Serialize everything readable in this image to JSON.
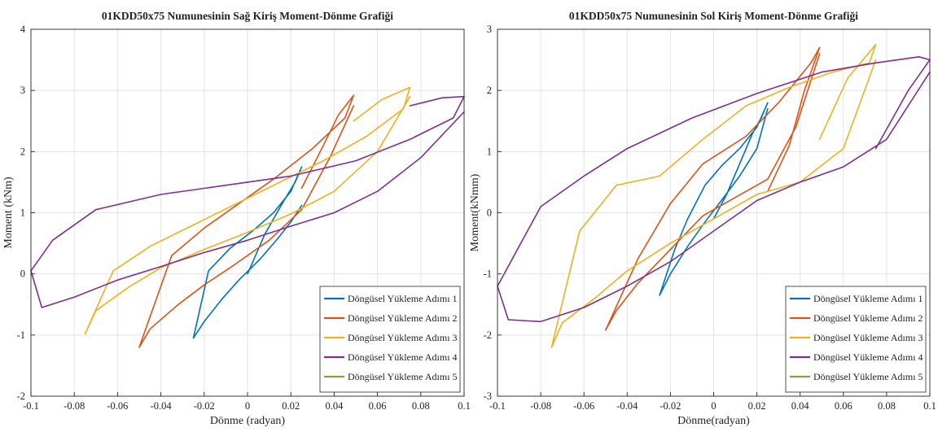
{
  "chart_data": [
    {
      "type": "line",
      "title": "01KDD50x75 Numunesinin Sağ Kiriş Moment-Dönme Grafiği",
      "xlabel": "Dönme (radyan)",
      "ylabel": "Moment (kNm)",
      "xlim": [
        -0.1,
        0.1
      ],
      "ylim": [
        -2,
        4
      ],
      "xticks": [
        -0.1,
        -0.08,
        -0.06,
        -0.04,
        -0.02,
        0,
        0.02,
        0.04,
        0.06,
        0.08,
        0.1
      ],
      "yticks": [
        -2,
        -1,
        0,
        1,
        2,
        3,
        4
      ],
      "grid": true,
      "legend_position": "bottom-right",
      "series": [
        {
          "name": "Döngüsel Yükleme Adımı 1",
          "color": "#0072BD",
          "x": [
            0,
            0.008,
            0.016,
            0.022,
            0.025,
            0.02,
            0.012,
            0.003,
            -0.008,
            -0.018,
            -0.025,
            -0.02,
            -0.012,
            -0.004,
            0.006,
            0.014,
            0.02,
            0.025
          ],
          "y": [
            0,
            0.65,
            1.15,
            1.5,
            1.75,
            1.35,
            1.0,
            0.72,
            0.42,
            0.05,
            -1.05,
            -0.78,
            -0.42,
            -0.1,
            0.25,
            0.58,
            0.85,
            1.12
          ]
        },
        {
          "name": "Döngüsel Yükleme Adımı 2",
          "color": "#D95319",
          "x": [
            0.025,
            0.035,
            0.042,
            0.049,
            0.045,
            0.03,
            0.012,
            -0.004,
            -0.02,
            -0.035,
            -0.05,
            -0.045,
            -0.032,
            -0.02,
            -0.006,
            0.01,
            0.025,
            0.038,
            0.049
          ],
          "y": [
            1.4,
            2.1,
            2.6,
            2.92,
            2.55,
            2.05,
            1.55,
            1.15,
            0.75,
            0.3,
            -1.2,
            -0.9,
            -0.5,
            -0.18,
            0.15,
            0.55,
            1.05,
            1.9,
            2.75
          ]
        },
        {
          "name": "Döngüsel Yükleme Adımı 3",
          "color": "#EDB120",
          "x": [
            0.049,
            0.062,
            0.075,
            0.072,
            0.055,
            0.035,
            0.015,
            -0.005,
            -0.025,
            -0.045,
            -0.062,
            -0.075,
            -0.07,
            -0.055,
            -0.04,
            -0.02,
            0,
            0.02,
            0.04,
            0.06,
            0.075
          ],
          "y": [
            2.5,
            2.85,
            3.05,
            2.7,
            2.25,
            1.85,
            1.5,
            1.15,
            0.8,
            0.45,
            0.05,
            -0.98,
            -0.6,
            -0.22,
            0.1,
            0.4,
            0.68,
            0.98,
            1.35,
            2.0,
            2.9
          ]
        },
        {
          "name": "Döngüsel Yükleme Adımı 4",
          "color": "#7E2F8E",
          "x": [
            0.075,
            0.09,
            0.1,
            0.095,
            0.075,
            0.05,
            0.02,
            -0.01,
            -0.04,
            -0.07,
            -0.09,
            -0.1,
            -0.095,
            -0.08,
            -0.06,
            -0.04,
            -0.02,
            0,
            0.02,
            0.04,
            0.06,
            0.08,
            0.1
          ],
          "y": [
            2.75,
            2.88,
            2.9,
            2.55,
            2.2,
            1.85,
            1.6,
            1.45,
            1.3,
            1.05,
            0.55,
            0.05,
            -0.55,
            -0.38,
            -0.1,
            0.12,
            0.35,
            0.55,
            0.78,
            1.0,
            1.35,
            1.9,
            2.65
          ]
        },
        {
          "name": "Döngüsel Yükleme Adımı 5",
          "color": "#77AC30",
          "x": [],
          "y": []
        }
      ]
    },
    {
      "type": "line",
      "title": "01KDD50x75 Numunesinin Sol Kiriş Moment-Dönme Grafiği",
      "xlabel": "Dönme(radyan)",
      "ylabel": "Moment(kNmm)",
      "xlim": [
        -0.1,
        0.1
      ],
      "ylim": [
        -3,
        3
      ],
      "xticks": [
        -0.1,
        -0.08,
        -0.06,
        -0.04,
        -0.02,
        0,
        0.02,
        0.04,
        0.06,
        0.08,
        0.1
      ],
      "yticks": [
        -3,
        -2,
        -1,
        0,
        1,
        2,
        3
      ],
      "grid": true,
      "legend_position": "bottom-right",
      "series": [
        {
          "name": "Döngüsel Yükleme Adımı 1",
          "color": "#0072BD",
          "x": [
            0,
            0.006,
            0.012,
            0.018,
            0.022,
            0.025,
            0.02,
            0.012,
            0.004,
            -0.004,
            -0.012,
            -0.018,
            -0.025,
            -0.02,
            -0.012,
            -0.004,
            0.004,
            0.012,
            0.02,
            0.025
          ],
          "y": [
            -0.1,
            0.3,
            0.8,
            1.3,
            1.55,
            1.8,
            1.4,
            1.05,
            0.78,
            0.45,
            -0.1,
            -0.6,
            -1.35,
            -1.0,
            -0.55,
            -0.15,
            0.22,
            0.6,
            1.05,
            1.7
          ]
        },
        {
          "name": "Döngüsel Yükleme Adımı 2",
          "color": "#D95319",
          "x": [
            0.025,
            0.035,
            0.042,
            0.049,
            0.045,
            0.03,
            0.015,
            -0.005,
            -0.02,
            -0.035,
            -0.05,
            -0.045,
            -0.035,
            -0.02,
            -0.005,
            0.01,
            0.025,
            0.038,
            0.049
          ],
          "y": [
            0.35,
            1.1,
            2.0,
            2.7,
            2.45,
            1.8,
            1.25,
            0.8,
            0.15,
            -0.75,
            -1.92,
            -1.6,
            -1.15,
            -0.6,
            -0.05,
            0.25,
            0.55,
            1.4,
            2.6
          ]
        },
        {
          "name": "Döngüsel Yükleme Adımı 3",
          "color": "#EDB120",
          "x": [
            0.049,
            0.062,
            0.075,
            0.072,
            0.055,
            0.035,
            0.015,
            -0.005,
            -0.025,
            -0.045,
            -0.062,
            -0.075,
            -0.07,
            -0.055,
            -0.04,
            -0.02,
            0,
            0.02,
            0.04,
            0.06,
            0.075
          ],
          "y": [
            1.2,
            2.2,
            2.75,
            2.45,
            2.3,
            2.05,
            1.75,
            1.2,
            0.6,
            0.45,
            -0.3,
            -2.2,
            -1.8,
            -1.4,
            -0.95,
            -0.5,
            -0.1,
            0.3,
            0.5,
            1.05,
            2.5
          ]
        },
        {
          "name": "Döngüsel Yükleme Adımı 4",
          "color": "#7E2F8E",
          "x": [
            0.075,
            0.09,
            0.1,
            0.095,
            0.075,
            0.05,
            0.02,
            -0.01,
            -0.04,
            -0.06,
            -0.08,
            -0.1,
            -0.095,
            -0.08,
            -0.06,
            -0.04,
            -0.02,
            0,
            0.02,
            0.04,
            0.06,
            0.08,
            0.1
          ],
          "y": [
            1.05,
            2.0,
            2.5,
            2.55,
            2.45,
            2.3,
            1.95,
            1.55,
            1.05,
            0.6,
            0.1,
            -1.2,
            -1.75,
            -1.78,
            -1.55,
            -1.2,
            -0.8,
            -0.3,
            0.2,
            0.5,
            0.75,
            1.2,
            2.3
          ]
        },
        {
          "name": "Döngüsel Yükleme Adımı 5",
          "color": "#77AC30",
          "x": [],
          "y": []
        }
      ]
    }
  ]
}
